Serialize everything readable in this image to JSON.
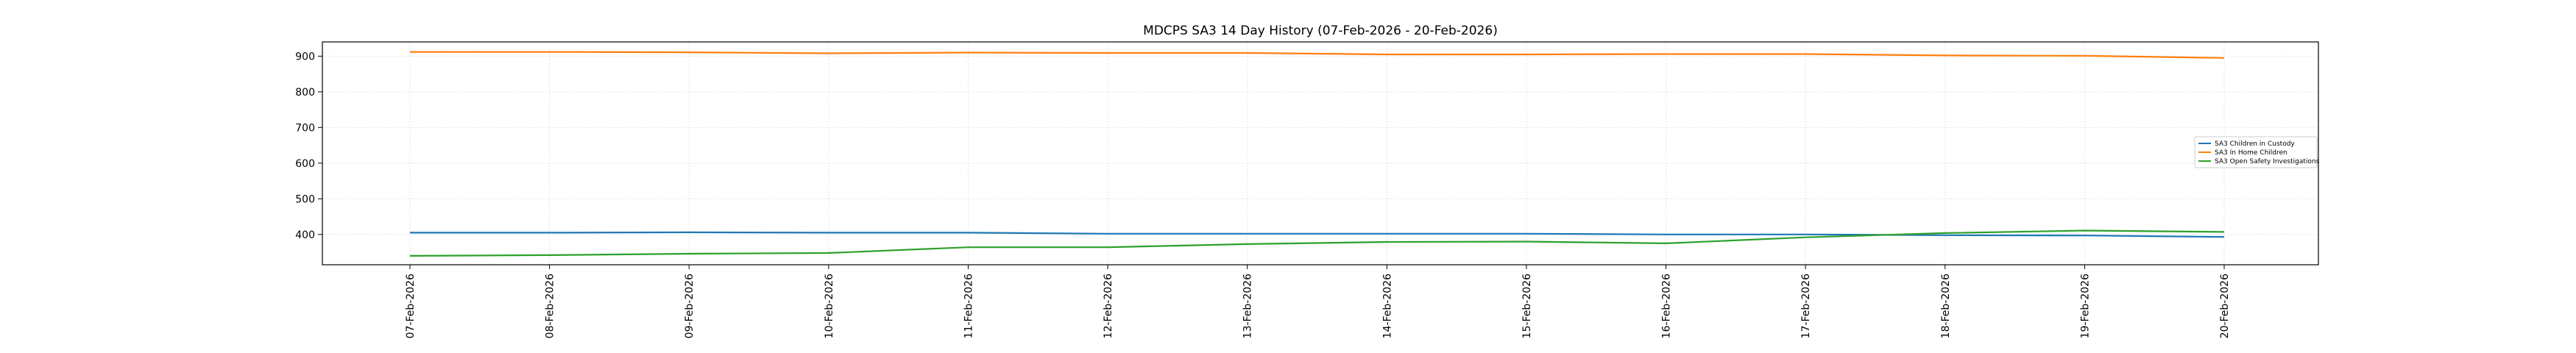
{
  "chart_data": {
    "type": "line",
    "title": "MDCPS SA3 14 Day History (07-Feb-2026 - 20-Feb-2026)",
    "xlabel": "",
    "ylabel": "",
    "categories": [
      "07-Feb-2026",
      "08-Feb-2026",
      "09-Feb-2026",
      "10-Feb-2026",
      "11-Feb-2026",
      "12-Feb-2026",
      "13-Feb-2026",
      "14-Feb-2026",
      "15-Feb-2026",
      "16-Feb-2026",
      "17-Feb-2026",
      "18-Feb-2026",
      "19-Feb-2026",
      "20-Feb-2026"
    ],
    "yticks": [
      400,
      500,
      600,
      700,
      800,
      900
    ],
    "ylim": [
      315,
      940
    ],
    "grid": true,
    "legend_position": "center-right",
    "series": [
      {
        "name": "SA3 Children in Custody",
        "color": "#1f77b4",
        "values": [
          405,
          405,
          406,
          405,
          405,
          402,
          402,
          402,
          402,
          400,
          400,
          398,
          397,
          393
        ]
      },
      {
        "name": "SA3 In Home Children",
        "color": "#ff7f0e",
        "values": [
          912,
          912,
          911,
          908,
          910,
          909,
          909,
          905,
          905,
          906,
          906,
          902,
          901,
          895
        ]
      },
      {
        "name": "SA3 Open Safety Investigations",
        "color": "#2ca02c",
        "values": [
          340,
          342,
          346,
          348,
          364,
          364,
          373,
          379,
          380,
          375,
          392,
          404,
          411,
          407
        ]
      }
    ]
  }
}
